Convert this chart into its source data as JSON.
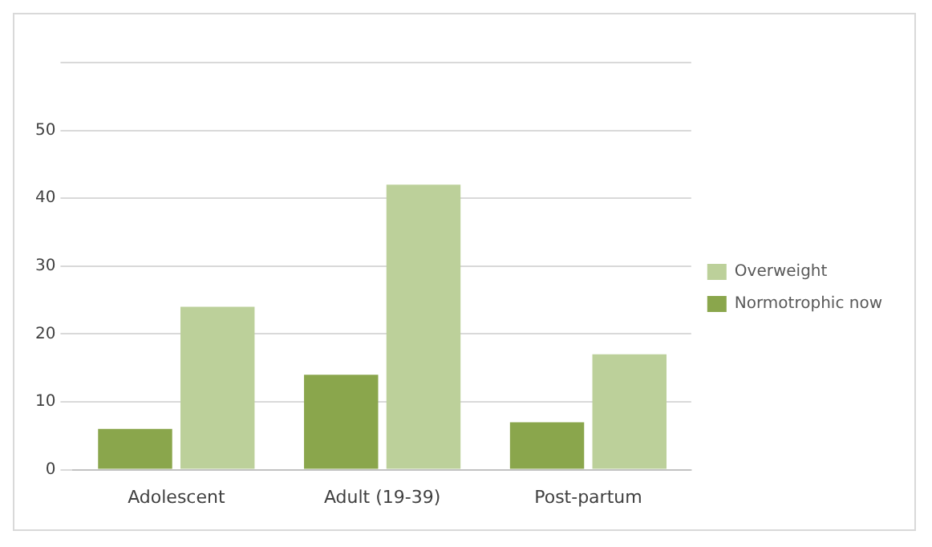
{
  "chart_data": {
    "type": "bar",
    "categories": [
      "Adolescent",
      "Adult (19-39)",
      "Post-partum"
    ],
    "series": [
      {
        "name": "Normotrophic now",
        "color": "#8aa64c",
        "values": [
          6,
          14,
          7
        ]
      },
      {
        "name": "Overweight",
        "color": "#bcd09a",
        "values": [
          24,
          42,
          17
        ]
      }
    ],
    "ylim": [
      0,
      60
    ],
    "yticks": [
      0,
      10,
      20,
      30,
      40,
      50,
      {
        "value": 60,
        "label": null
      }
    ],
    "grid": "y",
    "legend": "right"
  }
}
